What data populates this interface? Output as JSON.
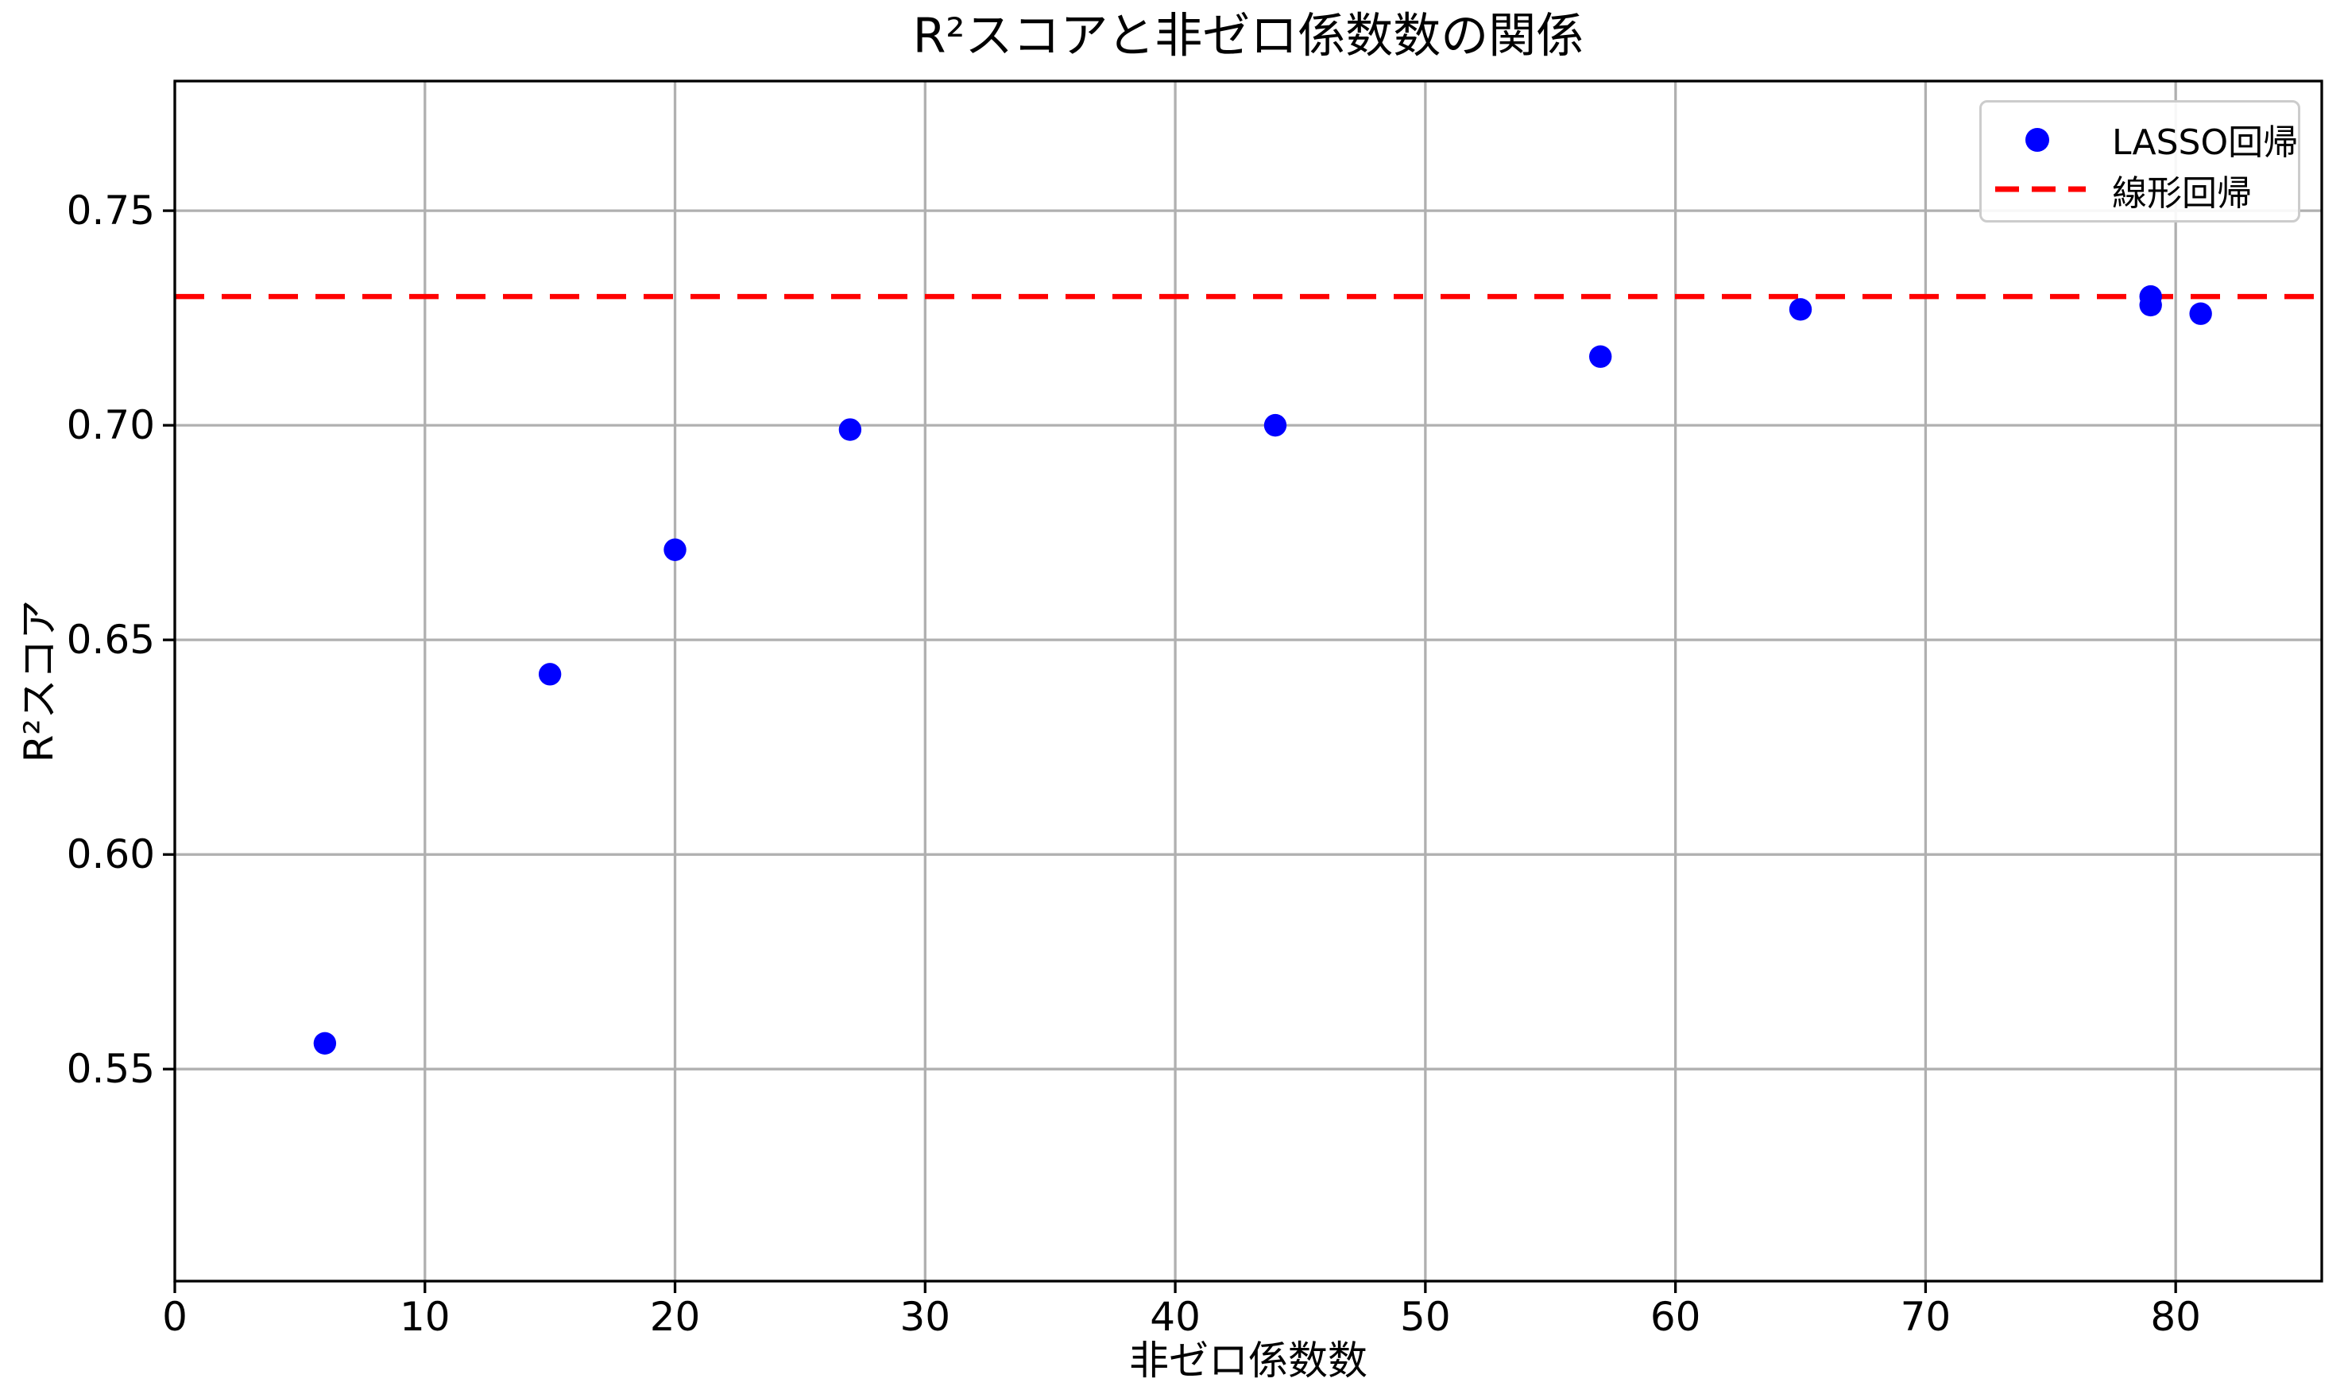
{
  "chart_data": {
    "type": "scatter",
    "title": "R²スコアと非ゼロ係数数の関係",
    "xlabel": "非ゼロ係数数",
    "ylabel": "R²スコア",
    "xlim": [
      0,
      85.84
    ],
    "ylim": [
      0.5006,
      0.7802
    ],
    "xticks": [
      0,
      10,
      20,
      30,
      40,
      50,
      60,
      70,
      80
    ],
    "yticks": [
      0.55,
      0.6,
      0.65,
      0.7,
      0.75
    ],
    "ytick_labels": [
      "0.55",
      "0.60",
      "0.65",
      "0.70",
      "0.75"
    ],
    "grid": {
      "visible": true,
      "color": "#b0b0b0"
    },
    "background": "#ffffff",
    "axis_color": "#000000",
    "series": [
      {
        "name": "LASSO回帰",
        "kind": "scatter",
        "marker": "circle",
        "color": "#0000ff",
        "points": [
          [
            6,
            0.556
          ],
          [
            15,
            0.642
          ],
          [
            20,
            0.671
          ],
          [
            27,
            0.699
          ],
          [
            44,
            0.7
          ],
          [
            57,
            0.716
          ],
          [
            65,
            0.727
          ],
          [
            79,
            0.73
          ],
          [
            79,
            0.728
          ],
          [
            81,
            0.726
          ]
        ]
      },
      {
        "name": "線形回帰",
        "kind": "hline",
        "linestyle": "dashed",
        "color": "#ff0000",
        "y": 0.73
      }
    ],
    "legend": {
      "position": "upper right",
      "entries": [
        "LASSO回帰",
        "線形回帰"
      ]
    }
  }
}
